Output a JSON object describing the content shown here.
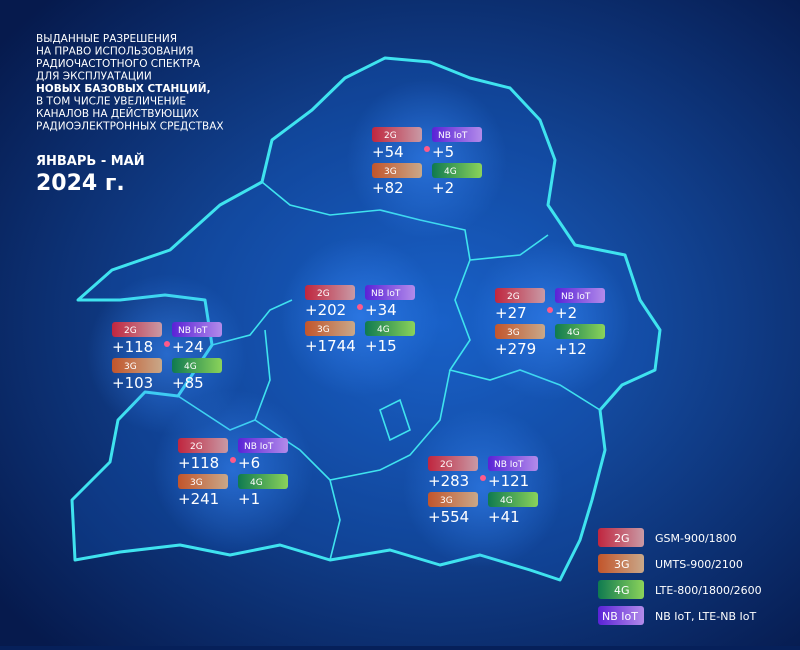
{
  "header": {
    "lines": [
      "ВЫДАННЫЕ РАЗРЕШЕНИЯ",
      "НА ПРАВО ИСПОЛЬЗОВАНИЯ",
      "РАДИОЧАСТОТНОГО СПЕКТРА",
      "ДЛЯ ЭКСПЛУАТАЦИИ",
      "НОВЫХ БАЗОВЫХ СТАНЦИЙ,",
      "В ТОМ ЧИСЛЕ УВЕЛИЧЕНИЕ",
      "КАНАЛОВ НА ДЕЙСТВУЮЩИХ",
      "РАДИОЭЛЕКТРОННЫХ СРЕДСТВАХ"
    ],
    "period": "ЯНВАРЬ - МАЙ",
    "year": "2024 г."
  },
  "tags": [
    "2G",
    "NB IoT",
    "3G",
    "4G"
  ],
  "regions": [
    {
      "values": [
        "+54",
        "+5",
        "+82",
        "+2"
      ]
    },
    {
      "values": [
        "+202",
        "+34",
        "+1744",
        "+15"
      ]
    },
    {
      "values": [
        "+27",
        "+2",
        "+279",
        "+12"
      ]
    },
    {
      "values": [
        "+118",
        "+24",
        "+103",
        "+85"
      ]
    },
    {
      "values": [
        "+118",
        "+6",
        "+241",
        "+1"
      ]
    },
    {
      "values": [
        "+283",
        "+121",
        "+554",
        "+41"
      ]
    }
  ],
  "legend": [
    {
      "tag": "2G",
      "text": "GSM-900/1800"
    },
    {
      "tag": "3G",
      "text": "UMTS-900/2100"
    },
    {
      "tag": "4G",
      "text": "LTE-800/1800/2600"
    },
    {
      "tag": "NB IoT",
      "text": "NB IoT, LTE-NB IoT"
    }
  ]
}
